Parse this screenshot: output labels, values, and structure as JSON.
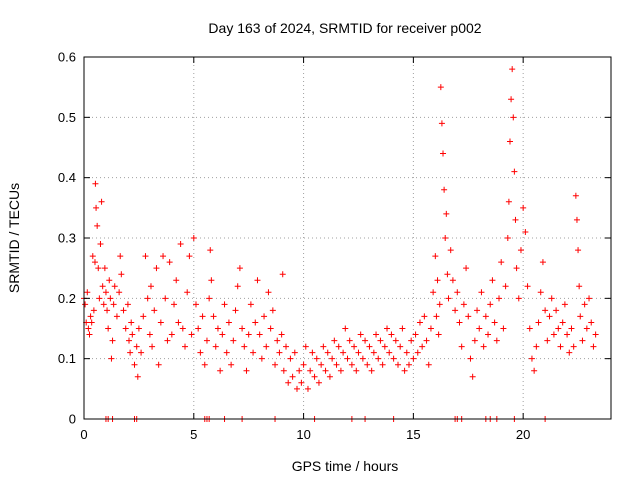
{
  "chart_data": {
    "type": "scatter",
    "title": "Day 163 of 2024, SRMTID for receiver p002",
    "xlabel": "GPS time / hours",
    "ylabel": "SRMTID / TECUs",
    "xlim": [
      0,
      24
    ],
    "ylim": [
      0,
      0.6
    ],
    "xticks": [
      0,
      5,
      10,
      15,
      20
    ],
    "yticks": [
      0,
      0.1,
      0.2,
      0.3,
      0.4,
      0.5,
      0.6
    ],
    "xtick_labels": [
      "0",
      "5",
      "10",
      "15",
      "20"
    ],
    "ytick_labels": [
      "0",
      "0.1",
      "0.2",
      "0.3",
      "0.4",
      "0.5",
      "0.6"
    ],
    "grid": true,
    "marker": "plus",
    "series_color": "#ff0000",
    "series": [
      {
        "name": "SRMTID",
        "points": [
          [
            0.0,
            0.2
          ],
          [
            0.05,
            0.19
          ],
          [
            0.1,
            0.16
          ],
          [
            0.15,
            0.21
          ],
          [
            0.2,
            0.15
          ],
          [
            0.25,
            0.14
          ],
          [
            0.3,
            0.17
          ],
          [
            0.35,
            0.16
          ],
          [
            0.4,
            0.27
          ],
          [
            0.45,
            0.18
          ],
          [
            0.5,
            0.26
          ],
          [
            0.52,
            0.39
          ],
          [
            0.55,
            0.35
          ],
          [
            0.6,
            0.32
          ],
          [
            0.65,
            0.25
          ],
          [
            0.7,
            0.2
          ],
          [
            0.75,
            0.29
          ],
          [
            0.8,
            0.36
          ],
          [
            0.85,
            0.22
          ],
          [
            0.9,
            0.19
          ],
          [
            0.95,
            0.25
          ],
          [
            1.0,
            0.21
          ],
          [
            1.05,
            0.18
          ],
          [
            1.1,
            0.15
          ],
          [
            1.15,
            0.23
          ],
          [
            1.2,
            0.2
          ],
          [
            1.25,
            0.1
          ],
          [
            1.3,
            0.13
          ],
          [
            1.35,
            0.19
          ],
          [
            1.4,
            0.22
          ],
          [
            1.5,
            0.17
          ],
          [
            1.6,
            0.21
          ],
          [
            1.65,
            0.27
          ],
          [
            1.7,
            0.24
          ],
          [
            1.8,
            0.18
          ],
          [
            1.9,
            0.15
          ],
          [
            2.0,
            0.19
          ],
          [
            2.05,
            0.13
          ],
          [
            2.1,
            0.11
          ],
          [
            2.15,
            0.16
          ],
          [
            2.2,
            0.14
          ],
          [
            2.3,
            0.09
          ],
          [
            2.4,
            0.12
          ],
          [
            2.45,
            0.07
          ],
          [
            2.5,
            0.15
          ],
          [
            2.6,
            0.11
          ],
          [
            2.7,
            0.17
          ],
          [
            2.8,
            0.27
          ],
          [
            2.9,
            0.2
          ],
          [
            3.0,
            0.14
          ],
          [
            3.05,
            0.22
          ],
          [
            3.1,
            0.12
          ],
          [
            3.2,
            0.18
          ],
          [
            3.3,
            0.25
          ],
          [
            3.4,
            0.09
          ],
          [
            3.5,
            0.16
          ],
          [
            3.6,
            0.27
          ],
          [
            3.7,
            0.2
          ],
          [
            3.8,
            0.13
          ],
          [
            3.9,
            0.26
          ],
          [
            4.0,
            0.14
          ],
          [
            4.1,
            0.19
          ],
          [
            4.2,
            0.23
          ],
          [
            4.3,
            0.16
          ],
          [
            4.4,
            0.29
          ],
          [
            4.5,
            0.15
          ],
          [
            4.6,
            0.12
          ],
          [
            4.7,
            0.21
          ],
          [
            4.8,
            0.27
          ],
          [
            4.9,
            0.14
          ],
          [
            5.0,
            0.3
          ],
          [
            5.1,
            0.19
          ],
          [
            5.2,
            0.15
          ],
          [
            5.3,
            0.11
          ],
          [
            5.4,
            0.17
          ],
          [
            5.5,
            0.09
          ],
          [
            5.6,
            0.13
          ],
          [
            5.7,
            0.2
          ],
          [
            5.75,
            0.28
          ],
          [
            5.8,
            0.23
          ],
          [
            5.9,
            0.17
          ],
          [
            6.0,
            0.12
          ],
          [
            6.1,
            0.15
          ],
          [
            6.2,
            0.08
          ],
          [
            6.3,
            0.14
          ],
          [
            6.4,
            0.19
          ],
          [
            6.5,
            0.11
          ],
          [
            6.6,
            0.16
          ],
          [
            6.7,
            0.09
          ],
          [
            6.8,
            0.13
          ],
          [
            6.9,
            0.18
          ],
          [
            7.0,
            0.22
          ],
          [
            7.1,
            0.25
          ],
          [
            7.2,
            0.15
          ],
          [
            7.3,
            0.12
          ],
          [
            7.4,
            0.08
          ],
          [
            7.5,
            0.14
          ],
          [
            7.6,
            0.19
          ],
          [
            7.7,
            0.11
          ],
          [
            7.8,
            0.16
          ],
          [
            7.9,
            0.23
          ],
          [
            8.0,
            0.14
          ],
          [
            8.1,
            0.1
          ],
          [
            8.2,
            0.17
          ],
          [
            8.3,
            0.12
          ],
          [
            8.4,
            0.21
          ],
          [
            8.5,
            0.15
          ],
          [
            8.6,
            0.18
          ],
          [
            8.7,
            0.09
          ],
          [
            8.8,
            0.13
          ],
          [
            8.9,
            0.11
          ],
          [
            9.0,
            0.14
          ],
          [
            9.05,
            0.24
          ],
          [
            9.1,
            0.08
          ],
          [
            9.2,
            0.12
          ],
          [
            9.3,
            0.06
          ],
          [
            9.4,
            0.1
          ],
          [
            9.5,
            0.07
          ],
          [
            9.6,
            0.11
          ],
          [
            9.7,
            0.05
          ],
          [
            9.8,
            0.08
          ],
          [
            9.9,
            0.06
          ],
          [
            10.0,
            0.09
          ],
          [
            10.1,
            0.12
          ],
          [
            10.2,
            0.05
          ],
          [
            10.3,
            0.08
          ],
          [
            10.4,
            0.11
          ],
          [
            10.5,
            0.07
          ],
          [
            10.6,
            0.1
          ],
          [
            10.7,
            0.06
          ],
          [
            10.8,
            0.09
          ],
          [
            10.9,
            0.12
          ],
          [
            11.0,
            0.08
          ],
          [
            11.1,
            0.11
          ],
          [
            11.2,
            0.07
          ],
          [
            11.3,
            0.1
          ],
          [
            11.4,
            0.13
          ],
          [
            11.5,
            0.09
          ],
          [
            11.6,
            0.12
          ],
          [
            11.7,
            0.08
          ],
          [
            11.8,
            0.11
          ],
          [
            11.9,
            0.15
          ],
          [
            12.0,
            0.1
          ],
          [
            12.1,
            0.13
          ],
          [
            12.2,
            0.09
          ],
          [
            12.3,
            0.12
          ],
          [
            12.4,
            0.08
          ],
          [
            12.5,
            0.11
          ],
          [
            12.6,
            0.14
          ],
          [
            12.7,
            0.1
          ],
          [
            12.8,
            0.13
          ],
          [
            12.9,
            0.09
          ],
          [
            13.0,
            0.12
          ],
          [
            13.1,
            0.08
          ],
          [
            13.2,
            0.11
          ],
          [
            13.3,
            0.14
          ],
          [
            13.4,
            0.1
          ],
          [
            13.5,
            0.13
          ],
          [
            13.6,
            0.09
          ],
          [
            13.7,
            0.12
          ],
          [
            13.8,
            0.15
          ],
          [
            13.9,
            0.11
          ],
          [
            14.0,
            0.14
          ],
          [
            14.1,
            0.1
          ],
          [
            14.2,
            0.13
          ],
          [
            14.3,
            0.09
          ],
          [
            14.4,
            0.12
          ],
          [
            14.5,
            0.15
          ],
          [
            14.6,
            0.08
          ],
          [
            14.7,
            0.11
          ],
          [
            14.8,
            0.09
          ],
          [
            14.9,
            0.13
          ],
          [
            15.0,
            0.1
          ],
          [
            15.1,
            0.14
          ],
          [
            15.2,
            0.11
          ],
          [
            15.3,
            0.16
          ],
          [
            15.4,
            0.12
          ],
          [
            15.5,
            0.17
          ],
          [
            15.6,
            0.13
          ],
          [
            15.7,
            0.09
          ],
          [
            15.8,
            0.15
          ],
          [
            15.9,
            0.21
          ],
          [
            16.0,
            0.27
          ],
          [
            16.05,
            0.17
          ],
          [
            16.1,
            0.23
          ],
          [
            16.15,
            0.14
          ],
          [
            16.2,
            0.19
          ],
          [
            16.25,
            0.55
          ],
          [
            16.3,
            0.49
          ],
          [
            16.35,
            0.44
          ],
          [
            16.4,
            0.38
          ],
          [
            16.45,
            0.3
          ],
          [
            16.5,
            0.34
          ],
          [
            16.55,
            0.24
          ],
          [
            16.6,
            0.2
          ],
          [
            16.7,
            0.28
          ],
          [
            16.8,
            0.23
          ],
          [
            16.9,
            0.18
          ],
          [
            17.0,
            0.21
          ],
          [
            17.1,
            0.16
          ],
          [
            17.2,
            0.12
          ],
          [
            17.3,
            0.19
          ],
          [
            17.4,
            0.25
          ],
          [
            17.5,
            0.17
          ],
          [
            17.6,
            0.1
          ],
          [
            17.7,
            0.07
          ],
          [
            17.8,
            0.13
          ],
          [
            17.9,
            0.18
          ],
          [
            18.0,
            0.15
          ],
          [
            18.1,
            0.21
          ],
          [
            18.2,
            0.12
          ],
          [
            18.3,
            0.17
          ],
          [
            18.4,
            0.14
          ],
          [
            18.5,
            0.19
          ],
          [
            18.6,
            0.23
          ],
          [
            18.7,
            0.16
          ],
          [
            18.8,
            0.13
          ],
          [
            18.9,
            0.2
          ],
          [
            19.0,
            0.26
          ],
          [
            19.1,
            0.15
          ],
          [
            19.2,
            0.22
          ],
          [
            19.3,
            0.3
          ],
          [
            19.35,
            0.36
          ],
          [
            19.4,
            0.46
          ],
          [
            19.45,
            0.53
          ],
          [
            19.5,
            0.58
          ],
          [
            19.55,
            0.5
          ],
          [
            19.6,
            0.41
          ],
          [
            19.65,
            0.33
          ],
          [
            19.7,
            0.25
          ],
          [
            19.8,
            0.2
          ],
          [
            19.9,
            0.28
          ],
          [
            20.0,
            0.35
          ],
          [
            20.1,
            0.31
          ],
          [
            20.2,
            0.22
          ],
          [
            20.3,
            0.15
          ],
          [
            20.4,
            0.1
          ],
          [
            20.5,
            0.08
          ],
          [
            20.6,
            0.12
          ],
          [
            20.7,
            0.16
          ],
          [
            20.8,
            0.21
          ],
          [
            20.9,
            0.26
          ],
          [
            21.0,
            0.18
          ],
          [
            21.1,
            0.13
          ],
          [
            21.2,
            0.17
          ],
          [
            21.3,
            0.2
          ],
          [
            21.4,
            0.14
          ],
          [
            21.5,
            0.18
          ],
          [
            21.6,
            0.15
          ],
          [
            21.7,
            0.12
          ],
          [
            21.8,
            0.16
          ],
          [
            21.9,
            0.19
          ],
          [
            22.0,
            0.14
          ],
          [
            22.1,
            0.11
          ],
          [
            22.2,
            0.15
          ],
          [
            22.3,
            0.12
          ],
          [
            22.4,
            0.37
          ],
          [
            22.45,
            0.33
          ],
          [
            22.5,
            0.28
          ],
          [
            22.55,
            0.22
          ],
          [
            22.6,
            0.17
          ],
          [
            22.7,
            0.13
          ],
          [
            22.8,
            0.19
          ],
          [
            22.9,
            0.15
          ],
          [
            23.0,
            0.2
          ],
          [
            23.1,
            0.16
          ],
          [
            23.2,
            0.12
          ],
          [
            23.3,
            0.14
          ]
        ]
      }
    ],
    "zero_points": [
      1.0,
      1.1,
      1.3,
      2.3,
      2.4,
      5.5,
      5.6,
      5.7,
      6.4,
      7.2,
      8.7,
      10.5,
      12.2,
      12.8,
      14.1,
      16.9,
      17.0,
      17.2,
      18.3,
      18.5,
      18.8,
      19.6,
      21.0
    ]
  }
}
